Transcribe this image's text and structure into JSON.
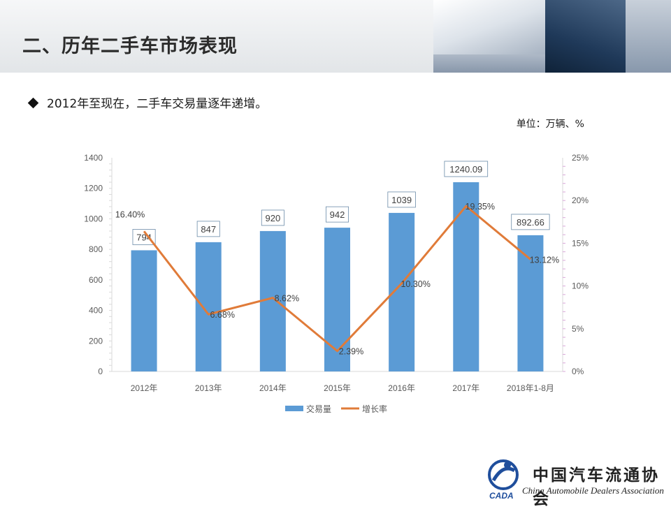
{
  "slide": {
    "title": "二、历年二手车市场表现",
    "bullet": "2012年至现在，二手车交易量逐年递增。",
    "unit": "单位：万辆、%"
  },
  "logo": {
    "cn": "中国汽车流通协会",
    "en": "China Automobile Dealers Association",
    "mark": "CADA"
  },
  "chart_data": {
    "type": "bar",
    "categories": [
      "2012年",
      "2013年",
      "2014年",
      "2015年",
      "2016年",
      "2017年",
      "2018年1-8月"
    ],
    "series": [
      {
        "name": "交易量",
        "type": "bar",
        "axis": "left",
        "color": "#5b9bd5",
        "values": [
          794,
          847,
          920,
          942,
          1039,
          1240.09,
          892.66
        ],
        "labels": [
          "794",
          "847",
          "920",
          "942",
          "1039",
          "1240.09",
          "892.66"
        ]
      },
      {
        "name": "增长率",
        "type": "line",
        "axis": "right",
        "color": "#e07b39",
        "values": [
          16.4,
          6.68,
          8.62,
          2.39,
          10.3,
          19.35,
          13.12
        ],
        "labels": [
          "16.40%",
          "6.68%",
          "8.62%",
          "2.39%",
          "10.30%",
          "19.35%",
          "13.12%"
        ]
      }
    ],
    "y_left": {
      "min": 0,
      "max": 1400,
      "ticks": [
        0,
        200,
        400,
        600,
        800,
        1000,
        1200,
        1400
      ]
    },
    "y_right": {
      "min": 0,
      "max": 25,
      "ticks": [
        "0%",
        "5%",
        "10%",
        "15%",
        "20%",
        "25%"
      ]
    },
    "legend_position": "bottom",
    "grid": false
  }
}
